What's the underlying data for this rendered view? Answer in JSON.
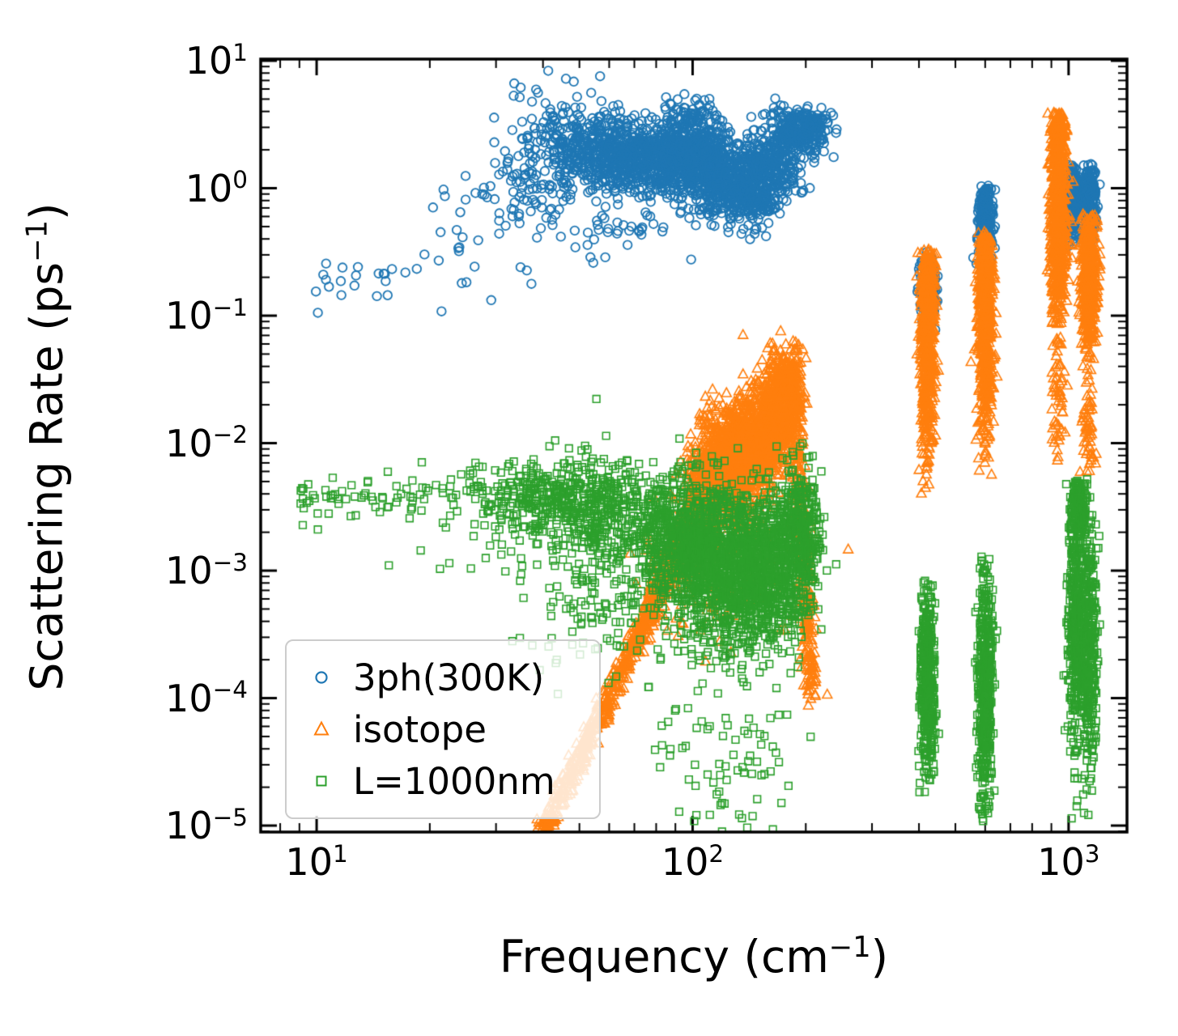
{
  "axes": {
    "tick_base": "10",
    "xlabel": {
      "prefix": "Frequency (cm",
      "sup": "−1",
      "suffix": ")"
    },
    "ylabel": {
      "prefix": "Scattering Rate (ps",
      "sup": "−1",
      "suffix": ")"
    },
    "x_ticks": [
      {
        "exp": "1",
        "value": 10
      },
      {
        "exp": "2",
        "value": 100
      },
      {
        "exp": "3",
        "value": 1000
      }
    ],
    "y_ticks": [
      {
        "exp": "1",
        "value": 10
      },
      {
        "exp": "0",
        "value": 1
      },
      {
        "exp": "−1",
        "value": 0.1
      },
      {
        "exp": "−2",
        "value": 0.01
      },
      {
        "exp": "−3",
        "value": 0.001
      },
      {
        "exp": "−4",
        "value": 0.0001
      },
      {
        "exp": "−5",
        "value": 1e-05
      }
    ]
  },
  "legend": {
    "items": [
      {
        "label": "3ph(300K)",
        "marker": "circle",
        "color": "#1f77b4"
      },
      {
        "label": "isotope",
        "marker": "triangle",
        "color": "#ff7f0e"
      },
      {
        "label": "L=1000nm",
        "marker": "square",
        "color": "#2ca02c"
      }
    ]
  },
  "chart_data": {
    "type": "scatter",
    "title": "",
    "xlabel": "Frequency (cm^-1)",
    "ylabel": "Scattering Rate (ps^-1)",
    "xscale": "log",
    "yscale": "log",
    "xlim": [
      7.1,
      1430
    ],
    "ylim": [
      8.9e-06,
      10.3
    ],
    "grid": false,
    "legend_position": "lower left",
    "cluster_units": "clusters describe the scatter clouds in log10(x),log10(y) space; n = point count",
    "series": [
      {
        "name": "3ph(300K)",
        "marker": "circle",
        "color": "#1f77b4",
        "clusters": [
          {
            "type": "line",
            "x0": 0.95,
            "y0": -0.88,
            "x1": 1.42,
            "y1": -0.45,
            "n": 26,
            "sx": 0.02,
            "sy": 0.16
          },
          {
            "type": "line",
            "x0": 1.33,
            "y0": -0.45,
            "x1": 1.58,
            "y1": 0.15,
            "n": 45,
            "sx": 0.03,
            "sy": 0.3
          },
          {
            "type": "blob",
            "cx": 1.58,
            "cy": 0.12,
            "sx": 0.05,
            "sy": 0.3,
            "n": 90
          },
          {
            "type": "blob",
            "cx": 1.68,
            "cy": 0.3,
            "sx": 0.05,
            "sy": 0.2,
            "n": 190
          },
          {
            "type": "blob",
            "cx": 1.78,
            "cy": 0.28,
            "sx": 0.05,
            "sy": 0.16,
            "n": 280
          },
          {
            "type": "blob",
            "cx": 1.88,
            "cy": 0.24,
            "sx": 0.05,
            "sy": 0.14,
            "n": 330
          },
          {
            "type": "blob",
            "cx": 1.97,
            "cy": 0.28,
            "sx": 0.04,
            "sy": 0.16,
            "n": 300
          },
          {
            "type": "blob",
            "cx": 2.03,
            "cy": 0.2,
            "sx": 0.04,
            "sy": 0.18,
            "n": 300
          },
          {
            "type": "blob",
            "cx": 2.1,
            "cy": 0.05,
            "sx": 0.04,
            "sy": 0.16,
            "n": 300
          },
          {
            "type": "blob",
            "cx": 2.16,
            "cy": -0.03,
            "sx": 0.04,
            "sy": 0.13,
            "n": 240
          },
          {
            "type": "blob",
            "cx": 2.22,
            "cy": 0.22,
            "sx": 0.04,
            "sy": 0.15,
            "n": 240
          },
          {
            "type": "blob",
            "cx": 2.28,
            "cy": 0.42,
            "sx": 0.035,
            "sy": 0.1,
            "n": 190
          },
          {
            "type": "blob",
            "cx": 2.32,
            "cy": 0.5,
            "sx": 0.02,
            "sy": 0.07,
            "n": 70
          },
          {
            "type": "blob",
            "cx": 1.85,
            "cy": -0.22,
            "sx": 0.12,
            "sy": 0.15,
            "n": 45
          },
          {
            "type": "blob",
            "cx": 2.0,
            "cy": 0.62,
            "sx": 0.025,
            "sy": 0.06,
            "n": 25
          },
          {
            "type": "blob",
            "cx": 2.625,
            "cy": -0.8,
            "sx": 0.01,
            "sy": 0.16,
            "n": 240,
            "clip": [
              -1.14,
              -0.5
            ]
          },
          {
            "type": "blob",
            "cx": 2.778,
            "cy": -0.28,
            "sx": 0.01,
            "sy": 0.16,
            "n": 260,
            "clip": [
              -0.63,
              0.02
            ]
          },
          {
            "type": "blob",
            "cx": 3.012,
            "cy": -0.1,
            "sx": 0.009,
            "sy": 0.15,
            "n": 240,
            "clip": [
              -0.47,
              0.19
            ]
          },
          {
            "type": "blob",
            "cx": 3.055,
            "cy": -0.1,
            "sx": 0.009,
            "sy": 0.15,
            "n": 220,
            "clip": [
              -0.45,
              0.19
            ]
          }
        ]
      },
      {
        "name": "isotope",
        "marker": "triangle",
        "color": "#ff7f0e",
        "clusters": [
          {
            "type": "line",
            "x0": 1.6,
            "y0": -5.05,
            "x1": 1.86,
            "y1": -3.5,
            "n": 380,
            "sx": 0.012,
            "sy": 0.05
          },
          {
            "type": "line",
            "x0": 1.86,
            "y0": -3.5,
            "x1": 2.02,
            "y1": -2.45,
            "n": 380,
            "sx": 0.012,
            "sy": 0.07
          },
          {
            "type": "blob",
            "cx": 1.96,
            "cy": -3.05,
            "sx": 0.06,
            "sy": 0.3,
            "n": 60
          },
          {
            "type": "blob",
            "cx": 2.03,
            "cy": -2.35,
            "sx": 0.03,
            "sy": 0.18,
            "n": 250
          },
          {
            "type": "blob",
            "cx": 2.07,
            "cy": -2.12,
            "sx": 0.03,
            "sy": 0.22,
            "n": 300
          },
          {
            "type": "blob",
            "cx": 2.11,
            "cy": -2.2,
            "sx": 0.03,
            "sy": 0.2,
            "n": 300
          },
          {
            "type": "blob",
            "cx": 2.15,
            "cy": -2.02,
            "sx": 0.03,
            "sy": 0.22,
            "n": 300
          },
          {
            "type": "blob",
            "cx": 2.19,
            "cy": -1.95,
            "sx": 0.03,
            "sy": 0.22,
            "n": 340
          },
          {
            "type": "blob",
            "cx": 2.23,
            "cy": -1.75,
            "sx": 0.025,
            "sy": 0.2,
            "n": 330
          },
          {
            "type": "blob",
            "cx": 2.255,
            "cy": -1.55,
            "sx": 0.018,
            "sy": 0.15,
            "n": 220
          },
          {
            "type": "line",
            "x0": 2.27,
            "y0": -1.6,
            "x1": 2.315,
            "y1": -3.95,
            "n": 280,
            "sx": 0.01,
            "sy": 0.04
          },
          {
            "type": "blob",
            "cx": 2.15,
            "cy": -2.95,
            "sx": 0.08,
            "sy": 0.3,
            "n": 70
          },
          {
            "type": "blob",
            "cx": 2.625,
            "cy": -1.3,
            "sx": 0.01,
            "sy": 0.4,
            "n": 420,
            "clip": [
              -2.95,
              -0.48
            ]
          },
          {
            "type": "blob",
            "cx": 2.625,
            "cy": -0.8,
            "sx": 0.009,
            "sy": 0.2,
            "n": 260,
            "clip": [
              -1.6,
              -0.48
            ]
          },
          {
            "type": "blob",
            "cx": 2.778,
            "cy": -1.15,
            "sx": 0.01,
            "sy": 0.42,
            "n": 450,
            "clip": [
              -2.25,
              -0.33
            ]
          },
          {
            "type": "blob",
            "cx": 2.778,
            "cy": -0.62,
            "sx": 0.009,
            "sy": 0.18,
            "n": 220,
            "clip": [
              -1.2,
              -0.33
            ]
          },
          {
            "type": "blob",
            "cx": 2.972,
            "cy": -0.25,
            "sx": 0.011,
            "sy": 0.38,
            "n": 650,
            "clip": [
              -1.06,
              0.6
            ]
          },
          {
            "type": "blob",
            "cx": 2.972,
            "cy": 0.45,
            "sx": 0.009,
            "sy": 0.12,
            "n": 150,
            "clip": [
              0.0,
              0.6
            ]
          },
          {
            "type": "blob",
            "cx": 2.972,
            "cy": -1.55,
            "sx": 0.01,
            "sy": 0.3,
            "n": 60,
            "clip": [
              -2.15,
              -1.0
            ]
          },
          {
            "type": "blob",
            "cx": 3.053,
            "cy": -0.7,
            "sx": 0.011,
            "sy": 0.3,
            "n": 480,
            "clip": [
              -1.55,
              -0.2
            ]
          },
          {
            "type": "blob",
            "cx": 3.053,
            "cy": -1.85,
            "sx": 0.01,
            "sy": 0.25,
            "n": 50,
            "clip": [
              -2.3,
              -1.5
            ]
          }
        ]
      },
      {
        "name": "L=1000nm",
        "marker": "square",
        "color": "#2ca02c",
        "clusters": [
          {
            "type": "line",
            "x0": 0.95,
            "y0": -2.42,
            "x1": 1.45,
            "y1": -2.36,
            "n": 90,
            "sx": 0.02,
            "sy": 0.1
          },
          {
            "type": "blob",
            "cx": 1.3,
            "cy": -2.85,
            "sx": 0.1,
            "sy": 0.12,
            "n": 6
          },
          {
            "type": "blob",
            "cx": 1.6,
            "cy": -2.45,
            "sx": 0.09,
            "sy": 0.16,
            "n": 300
          },
          {
            "type": "blob",
            "cx": 1.78,
            "cy": -2.55,
            "sx": 0.08,
            "sy": 0.22,
            "n": 350
          },
          {
            "type": "blob",
            "cx": 1.72,
            "cy": -3.25,
            "sx": 0.1,
            "sy": 0.38,
            "n": 120
          },
          {
            "type": "blob",
            "cx": 1.95,
            "cy": -2.8,
            "sx": 0.05,
            "sy": 0.28,
            "n": 380
          },
          {
            "type": "blob",
            "cx": 2.02,
            "cy": -2.9,
            "sx": 0.04,
            "sy": 0.3,
            "n": 400
          },
          {
            "type": "blob",
            "cx": 2.08,
            "cy": -3.0,
            "sx": 0.04,
            "sy": 0.32,
            "n": 400
          },
          {
            "type": "blob",
            "cx": 2.14,
            "cy": -3.05,
            "sx": 0.04,
            "sy": 0.32,
            "n": 380
          },
          {
            "type": "blob",
            "cx": 2.2,
            "cy": -3.0,
            "sx": 0.04,
            "sy": 0.3,
            "n": 350
          },
          {
            "type": "blob",
            "cx": 2.26,
            "cy": -2.85,
            "sx": 0.035,
            "sy": 0.3,
            "n": 330
          },
          {
            "type": "blob",
            "cx": 2.3,
            "cy": -2.7,
            "sx": 0.02,
            "sy": 0.25,
            "n": 180
          },
          {
            "type": "blob",
            "cx": 2.05,
            "cy": -4.35,
            "sx": 0.1,
            "sy": 0.35,
            "n": 55
          },
          {
            "type": "blob",
            "cx": 2.2,
            "cy": -4.55,
            "sx": 0.06,
            "sy": 0.25,
            "n": 18
          },
          {
            "type": "blob",
            "cx": 2.1,
            "cy": -4.9,
            "sx": 0.1,
            "sy": 0.08,
            "n": 8
          },
          {
            "type": "blob",
            "cx": 2.625,
            "cy": -3.85,
            "sx": 0.01,
            "sy": 0.42,
            "n": 420,
            "clip": [
              -4.75,
              -3.05
            ]
          },
          {
            "type": "blob",
            "cx": 2.778,
            "cy": -3.95,
            "sx": 0.01,
            "sy": 0.5,
            "n": 460,
            "clip": [
              -5.02,
              -2.88
            ]
          },
          {
            "type": "blob",
            "cx": 3.02,
            "cy": -3.4,
            "sx": 0.011,
            "sy": 0.5,
            "n": 420,
            "clip": [
              -5.02,
              -2.3
            ]
          },
          {
            "type": "blob",
            "cx": 3.024,
            "cy": -2.5,
            "sx": 0.011,
            "sy": 0.14,
            "n": 160,
            "clip": [
              -2.85,
              -2.28
            ]
          },
          {
            "type": "blob",
            "cx": 3.055,
            "cy": -3.6,
            "sx": 0.01,
            "sy": 0.5,
            "n": 340,
            "clip": [
              -5.02,
              -2.45
            ]
          }
        ]
      }
    ]
  }
}
